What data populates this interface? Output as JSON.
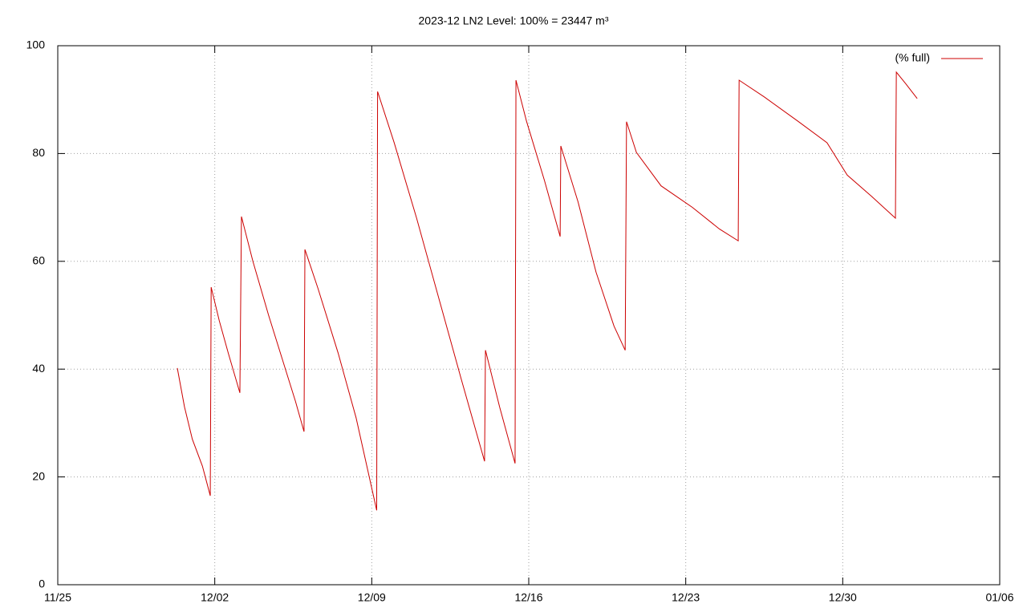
{
  "chart_data": {
    "type": "line",
    "title": "2023-12 LN2 Level: 100% = 23447 m³",
    "x": [
      5.33,
      5.65,
      6.0,
      6.45,
      6.8,
      6.84,
      7.2,
      7.6,
      8.12,
      8.19,
      8.7,
      9.4,
      10.0,
      10.6,
      10.98,
      11.02,
      11.6,
      12.5,
      13.3,
      14.22,
      14.26,
      15.0,
      16.0,
      17.0,
      18.0,
      19.03,
      19.07,
      19.7,
      20.39,
      20.43,
      20.9,
      21.7,
      22.4,
      22.43,
      23.2,
      24.0,
      24.8,
      25.3,
      25.36,
      25.8,
      26.9,
      28.3,
      29.5,
      30.34,
      30.38,
      31.5,
      33.0,
      34.3,
      35.2,
      36.3,
      37.35,
      37.39,
      37.8,
      38.32
    ],
    "series": [
      {
        "name": "(% full)",
        "color": "#cc0000",
        "values": [
          40.2,
          33,
          27,
          22,
          16.5,
          55.2,
          49,
          43,
          35.6,
          68.3,
          60,
          50,
          42,
          34,
          28.4,
          62.2,
          55,
          43,
          31,
          13.8,
          91.5,
          82,
          68,
          53,
          38,
          22.9,
          43.5,
          33,
          22.5,
          93.6,
          86,
          75,
          64.6,
          81.4,
          71,
          58,
          48,
          43.5,
          85.9,
          80.2,
          74,
          70,
          66,
          63.8,
          93.6,
          90.5,
          86,
          82,
          76,
          72,
          68.0,
          95.1,
          93,
          90.2
        ]
      }
    ],
    "xlim": [
      0,
      42
    ],
    "xticks": [
      {
        "value": 0,
        "label": "11/25"
      },
      {
        "value": 7,
        "label": "12/02"
      },
      {
        "value": 14,
        "label": "12/09"
      },
      {
        "value": 21,
        "label": "12/16"
      },
      {
        "value": 28,
        "label": "12/23"
      },
      {
        "value": 35,
        "label": "12/30"
      },
      {
        "value": 42,
        "label": "01/06"
      }
    ],
    "ylim": [
      0,
      100
    ],
    "yticks": [
      0,
      20,
      40,
      60,
      80,
      100
    ],
    "grid": true,
    "legend": "top-right"
  }
}
